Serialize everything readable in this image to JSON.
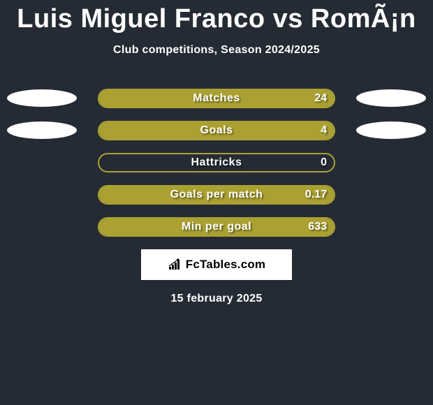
{
  "title": "Luis Miguel Franco vs RomÃ¡n",
  "subtitle": "Club competitions, Season 2024/2025",
  "date": "15 february 2025",
  "logo": {
    "text": "FcTables.com"
  },
  "colors": {
    "olive": "#aba132",
    "background": "#252b34",
    "white": "#ffffff"
  },
  "ellipses": [
    {
      "left_width": 100,
      "right_width": 100
    },
    {
      "left_width": 100,
      "right_width": 100
    }
  ],
  "stats": [
    {
      "label": "Matches",
      "value": "24",
      "fill_width": 336,
      "fill_color": "#aba132",
      "outline_color": "#aba132",
      "show_ellipses": true
    },
    {
      "label": "Goals",
      "value": "4",
      "fill_width": 336,
      "fill_color": "#aba132",
      "outline_color": "#aba132",
      "show_ellipses": true
    },
    {
      "label": "Hattricks",
      "value": "0",
      "fill_width": 0,
      "fill_color": "#aba132",
      "outline_color": "#aba132",
      "show_ellipses": false
    },
    {
      "label": "Goals per match",
      "value": "0.17",
      "fill_width": 336,
      "fill_color": "#aba132",
      "outline_color": "#aba132",
      "show_ellipses": false
    },
    {
      "label": "Min per goal",
      "value": "633",
      "fill_width": 336,
      "fill_color": "#aba132",
      "outline_color": "#aba132",
      "show_ellipses": false
    }
  ]
}
